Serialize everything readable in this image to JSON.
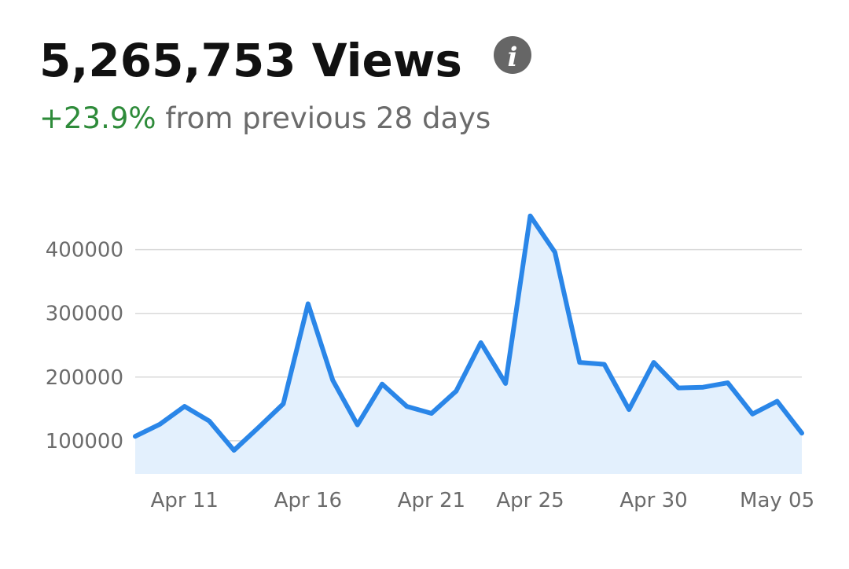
{
  "chart_data": {
    "type": "line",
    "title": "5,265,753 Views",
    "change": "+23.9%",
    "change_text": "from previous 28 days",
    "categories": [
      null,
      null,
      "Apr 11",
      null,
      null,
      null,
      null,
      "Apr 16",
      null,
      null,
      null,
      null,
      "Apr 21",
      null,
      null,
      null,
      "Apr 25",
      null,
      null,
      null,
      null,
      "Apr 30",
      null,
      null,
      null,
      null,
      "May 05",
      null
    ],
    "series": [
      {
        "name": "Views",
        "color": "#2a86e8",
        "fill": "#e3f0fd",
        "values": [
          107000,
          126000,
          154000,
          131000,
          85000,
          121000,
          158000,
          315000,
          195000,
          125000,
          189000,
          154000,
          143000,
          178000,
          254000,
          190000,
          453000,
          396000,
          223000,
          220000,
          149000,
          223000,
          183000,
          184000,
          191000,
          142000,
          162000,
          112000
        ]
      }
    ],
    "ylim": [
      48000,
      460000
    ],
    "yticks": [
      100000,
      200000,
      300000,
      400000
    ],
    "grid": true
  }
}
